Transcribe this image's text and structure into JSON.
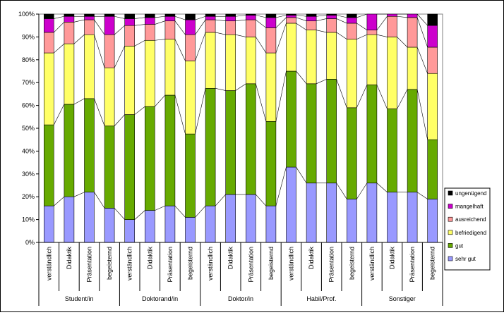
{
  "chart_data": {
    "type": "bar",
    "stacked": "percent",
    "ylim": [
      0,
      100
    ],
    "y_ticks": [
      "0%",
      "10%",
      "20%",
      "30%",
      "40%",
      "50%",
      "60%",
      "70%",
      "80%",
      "90%",
      "100%"
    ],
    "groups": [
      "Student/in",
      "Doktorand/in",
      "Doktor/in",
      "Habil/Prof.",
      "Sonstiger"
    ],
    "subcategories": [
      "verständlich",
      "Didaktik",
      "Präsentation",
      "begeisternd"
    ],
    "legend_position": "right",
    "series": [
      {
        "name": "sehr gut",
        "color": "#9999ff",
        "values": [
          16,
          20,
          22,
          15,
          10,
          14,
          16,
          11,
          16,
          21,
          21,
          16,
          33,
          26,
          26,
          19,
          26,
          22,
          22,
          19
        ]
      },
      {
        "name": "gut",
        "color": "#66aa00",
        "values": [
          35.5,
          40.5,
          41,
          36,
          46,
          45.5,
          48.5,
          36.5,
          51.5,
          45.5,
          48.5,
          37,
          42,
          43.5,
          45.5,
          40,
          43,
          36.5,
          45,
          26
        ]
      },
      {
        "name": "befriedigend",
        "color": "#ffff66",
        "values": [
          31.5,
          26.5,
          28,
          25.5,
          30,
          29,
          24.5,
          32,
          24.5,
          24.5,
          20.5,
          30,
          21,
          23.5,
          20.5,
          30,
          22,
          31.5,
          18.5,
          29
        ]
      },
      {
        "name": "ausreichend",
        "color": "#ff9999",
        "values": [
          9,
          9.5,
          6.5,
          14.5,
          9,
          7,
          8,
          11.5,
          5.5,
          6,
          7.5,
          11,
          2.5,
          4,
          6,
          7,
          2,
          9,
          13,
          11.5
        ]
      },
      {
        "name": "mangelhaft",
        "color": "#cc00cc",
        "values": [
          6,
          2.5,
          1.5,
          8,
          3,
          3,
          2,
          6.5,
          1.5,
          2,
          2,
          4.5,
          1,
          2,
          1.5,
          2.5,
          7,
          1,
          1.5,
          9.5
        ]
      },
      {
        "name": "ungenügend",
        "color": "#000000",
        "values": [
          2,
          1,
          1,
          1,
          2,
          1.5,
          1,
          2.5,
          1,
          1,
          0.5,
          1.5,
          0.5,
          1,
          0.5,
          1.5,
          0,
          0,
          0,
          5
        ]
      }
    ]
  }
}
